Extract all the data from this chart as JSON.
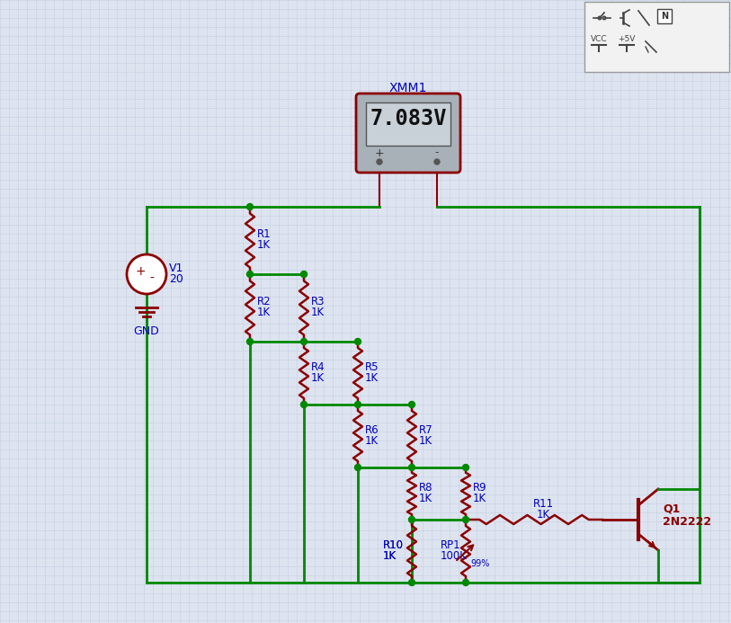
{
  "background_color": "#dde4f0",
  "grid_color": "#c4cfe0",
  "wire_color": "#008800",
  "component_color": "#8b0000",
  "label_color": "#0000bb",
  "voltmeter_reading": "7.083V",
  "voltmeter_label": "XMM1",
  "source_label": "V1",
  "source_value": "20",
  "gnd_label": "GND",
  "transistor_label": "Q1",
  "transistor_type": "2N2222",
  "toolbar_bg": "#f2f2f2",
  "meter_bg": "#a8b0b8",
  "meter_screen_bg": "#c8d0d8",
  "meter_border": "#8b0000",
  "wire_lead_color": "#8b0000"
}
